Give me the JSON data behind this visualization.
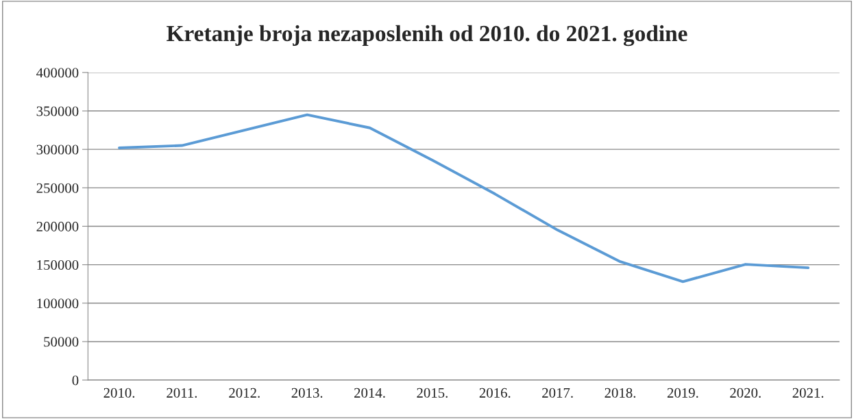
{
  "chart_data": {
    "type": "line",
    "title": "Kretanje broja nezaposlenih od 2010. do 2021. godine",
    "categories": [
      "2010.",
      "2011.",
      "2012.",
      "2013.",
      "2014.",
      "2015.",
      "2016.",
      "2017.",
      "2018.",
      "2019.",
      "2020.",
      "2021."
    ],
    "series": [
      {
        "color": "#5b9bd5",
        "values": [
          302000,
          305000,
          325000,
          345000,
          328000,
          286000,
          242000,
          195000,
          154000,
          128000,
          150500,
          146000
        ]
      }
    ],
    "ylim": [
      0,
      400000
    ],
    "yticks": [
      0,
      50000,
      100000,
      150000,
      200000,
      250000,
      300000,
      350000,
      400000
    ],
    "grid": "y",
    "legend": false,
    "marker": "none",
    "line_style": "solid"
  }
}
